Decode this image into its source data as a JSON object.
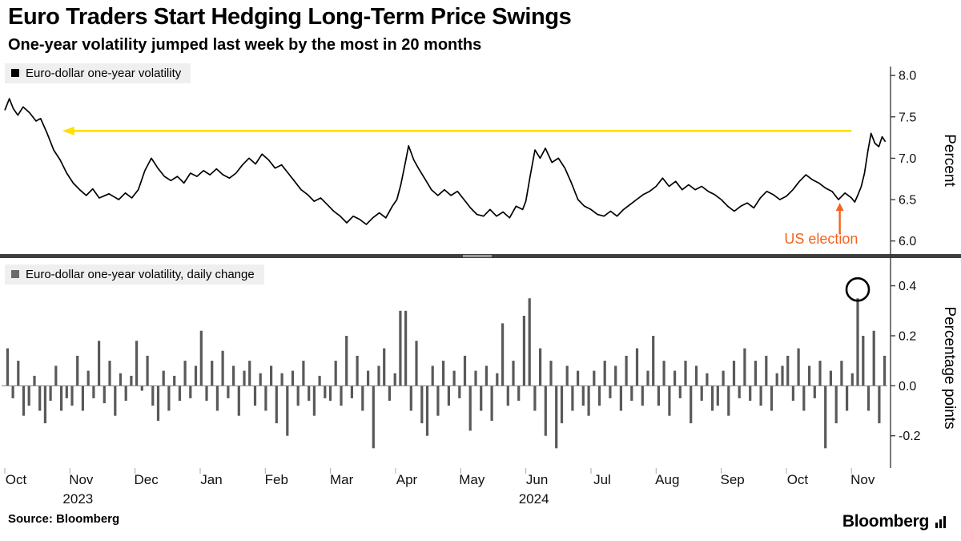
{
  "title": "Euro Traders Start Hedging Long-Term Price Swings",
  "subtitle": "One-year volatility jumped last week by the most in 20 months",
  "source": "Source: Bloomberg",
  "brand": "Bloomberg",
  "colors": {
    "line": "#000000",
    "bar": "#595959",
    "accent_yellow": "#ffe000",
    "accent_orange": "#f4631c",
    "legend_bg": "#efefef",
    "axis": "#333333",
    "divider": "#3f3f3f"
  },
  "x_axis": {
    "months": [
      "Oct",
      "Nov",
      "Dec",
      "Jan",
      "Feb",
      "Mar",
      "Apr",
      "May",
      "Jun",
      "Jul",
      "Aug",
      "Sep",
      "Oct",
      "Nov"
    ],
    "years": [
      {
        "label": "2023",
        "month_index": 1
      },
      {
        "label": "2024",
        "month_index": 8
      }
    ],
    "span_months": 13.55
  },
  "chart_data": [
    {
      "type": "line",
      "title": "Euro-dollar one-year volatility",
      "ylabel": "Percent",
      "ylim": [
        5.9,
        8.05
      ],
      "yticks": [
        8.0,
        7.5,
        7.0,
        6.5,
        6.0
      ],
      "x_unit": "months since 2023-10-01",
      "points": [
        [
          0.0,
          7.58
        ],
        [
          0.07,
          7.72
        ],
        [
          0.13,
          7.6
        ],
        [
          0.2,
          7.52
        ],
        [
          0.28,
          7.62
        ],
        [
          0.38,
          7.55
        ],
        [
          0.48,
          7.45
        ],
        [
          0.55,
          7.48
        ],
        [
          0.65,
          7.3
        ],
        [
          0.75,
          7.1
        ],
        [
          0.85,
          6.98
        ],
        [
          0.95,
          6.82
        ],
        [
          1.05,
          6.7
        ],
        [
          1.15,
          6.62
        ],
        [
          1.25,
          6.55
        ],
        [
          1.35,
          6.63
        ],
        [
          1.45,
          6.52
        ],
        [
          1.6,
          6.57
        ],
        [
          1.75,
          6.5
        ],
        [
          1.85,
          6.58
        ],
        [
          1.95,
          6.52
        ],
        [
          2.05,
          6.62
        ],
        [
          2.15,
          6.85
        ],
        [
          2.25,
          7.0
        ],
        [
          2.35,
          6.88
        ],
        [
          2.45,
          6.78
        ],
        [
          2.55,
          6.73
        ],
        [
          2.65,
          6.78
        ],
        [
          2.75,
          6.7
        ],
        [
          2.85,
          6.82
        ],
        [
          2.95,
          6.78
        ],
        [
          3.05,
          6.85
        ],
        [
          3.15,
          6.8
        ],
        [
          3.25,
          6.87
        ],
        [
          3.35,
          6.8
        ],
        [
          3.45,
          6.76
        ],
        [
          3.55,
          6.82
        ],
        [
          3.65,
          6.92
        ],
        [
          3.75,
          7.0
        ],
        [
          3.85,
          6.93
        ],
        [
          3.95,
          7.05
        ],
        [
          4.05,
          6.98
        ],
        [
          4.15,
          6.88
        ],
        [
          4.25,
          6.92
        ],
        [
          4.35,
          6.82
        ],
        [
          4.45,
          6.72
        ],
        [
          4.55,
          6.62
        ],
        [
          4.65,
          6.56
        ],
        [
          4.75,
          6.48
        ],
        [
          4.85,
          6.52
        ],
        [
          4.95,
          6.44
        ],
        [
          5.05,
          6.36
        ],
        [
          5.15,
          6.3
        ],
        [
          5.25,
          6.22
        ],
        [
          5.35,
          6.3
        ],
        [
          5.45,
          6.26
        ],
        [
          5.55,
          6.2
        ],
        [
          5.65,
          6.28
        ],
        [
          5.75,
          6.34
        ],
        [
          5.85,
          6.28
        ],
        [
          5.95,
          6.42
        ],
        [
          6.02,
          6.5
        ],
        [
          6.08,
          6.68
        ],
        [
          6.15,
          6.95
        ],
        [
          6.2,
          7.15
        ],
        [
          6.28,
          6.98
        ],
        [
          6.35,
          6.88
        ],
        [
          6.45,
          6.75
        ],
        [
          6.55,
          6.62
        ],
        [
          6.65,
          6.55
        ],
        [
          6.75,
          6.62
        ],
        [
          6.85,
          6.55
        ],
        [
          6.95,
          6.6
        ],
        [
          7.05,
          6.5
        ],
        [
          7.15,
          6.4
        ],
        [
          7.25,
          6.32
        ],
        [
          7.35,
          6.3
        ],
        [
          7.45,
          6.38
        ],
        [
          7.55,
          6.3
        ],
        [
          7.65,
          6.35
        ],
        [
          7.75,
          6.28
        ],
        [
          7.85,
          6.42
        ],
        [
          7.95,
          6.38
        ],
        [
          8.0,
          6.48
        ],
        [
          8.07,
          6.8
        ],
        [
          8.14,
          7.1
        ],
        [
          8.22,
          7.0
        ],
        [
          8.3,
          7.12
        ],
        [
          8.4,
          6.95
        ],
        [
          8.5,
          7.0
        ],
        [
          8.6,
          6.88
        ],
        [
          8.7,
          6.7
        ],
        [
          8.8,
          6.5
        ],
        [
          8.9,
          6.42
        ],
        [
          9.0,
          6.38
        ],
        [
          9.1,
          6.32
        ],
        [
          9.2,
          6.3
        ],
        [
          9.3,
          6.36
        ],
        [
          9.4,
          6.3
        ],
        [
          9.5,
          6.38
        ],
        [
          9.6,
          6.44
        ],
        [
          9.7,
          6.5
        ],
        [
          9.8,
          6.56
        ],
        [
          9.9,
          6.6
        ],
        [
          10.0,
          6.66
        ],
        [
          10.1,
          6.76
        ],
        [
          10.2,
          6.66
        ],
        [
          10.3,
          6.72
        ],
        [
          10.4,
          6.62
        ],
        [
          10.5,
          6.68
        ],
        [
          10.6,
          6.62
        ],
        [
          10.7,
          6.66
        ],
        [
          10.8,
          6.6
        ],
        [
          10.9,
          6.56
        ],
        [
          11.0,
          6.5
        ],
        [
          11.1,
          6.42
        ],
        [
          11.2,
          6.36
        ],
        [
          11.3,
          6.42
        ],
        [
          11.4,
          6.46
        ],
        [
          11.5,
          6.4
        ],
        [
          11.6,
          6.52
        ],
        [
          11.7,
          6.6
        ],
        [
          11.8,
          6.56
        ],
        [
          11.9,
          6.5
        ],
        [
          12.0,
          6.54
        ],
        [
          12.1,
          6.62
        ],
        [
          12.2,
          6.72
        ],
        [
          12.3,
          6.8
        ],
        [
          12.4,
          6.74
        ],
        [
          12.5,
          6.7
        ],
        [
          12.6,
          6.64
        ],
        [
          12.7,
          6.6
        ],
        [
          12.8,
          6.5
        ],
        [
          12.9,
          6.58
        ],
        [
          13.0,
          6.52
        ],
        [
          13.05,
          6.47
        ],
        [
          13.1,
          6.56
        ],
        [
          13.15,
          6.66
        ],
        [
          13.2,
          6.82
        ],
        [
          13.25,
          7.08
        ],
        [
          13.3,
          7.3
        ],
        [
          13.36,
          7.18
        ],
        [
          13.42,
          7.14
        ],
        [
          13.47,
          7.26
        ],
        [
          13.52,
          7.2
        ]
      ],
      "annotations": {
        "yellow_arrow": {
          "value": 7.33,
          "from_month": 13.0,
          "to_month": 0.92
        },
        "us_election": {
          "label": "US election",
          "arrow_month": 12.82,
          "arrow_from_value": 6.08,
          "arrow_to_value": 6.46,
          "label_month": 13.1,
          "label_value": 5.97
        }
      }
    },
    {
      "type": "bar",
      "title": "Euro-dollar one-year volatility, daily change",
      "ylabel": "Percentage points",
      "ylim": [
        -0.31,
        0.45
      ],
      "yticks": [
        0.4,
        0.2,
        0.0,
        -0.2
      ],
      "values": [
        0.15,
        -0.05,
        0.1,
        -0.12,
        -0.08,
        0.04,
        -0.1,
        -0.15,
        -0.06,
        0.08,
        -0.1,
        -0.05,
        -0.08,
        0.12,
        -0.1,
        0.06,
        -0.05,
        0.18,
        -0.07,
        0.1,
        -0.12,
        0.05,
        -0.06,
        0.04,
        0.18,
        -0.02,
        0.12,
        -0.08,
        -0.14,
        0.06,
        -0.1,
        0.04,
        -0.06,
        0.1,
        -0.05,
        0.08,
        0.22,
        -0.06,
        0.1,
        -0.1,
        0.14,
        -0.05,
        0.08,
        -0.12,
        0.06,
        0.1,
        -0.08,
        0.05,
        -0.1,
        0.08,
        -0.15,
        0.05,
        -0.2,
        0.06,
        -0.08,
        0.1,
        -0.06,
        -0.12,
        0.04,
        -0.05,
        -0.06,
        0.1,
        -0.08,
        0.2,
        -0.05,
        0.12,
        -0.1,
        0.06,
        -0.25,
        0.08,
        0.15,
        -0.06,
        0.05,
        0.3,
        0.3,
        -0.1,
        0.18,
        -0.15,
        -0.2,
        0.08,
        -0.12,
        0.1,
        -0.08,
        0.06,
        -0.05,
        0.12,
        -0.18,
        0.06,
        -0.1,
        0.08,
        -0.14,
        0.05,
        0.25,
        -0.08,
        0.1,
        -0.06,
        0.28,
        0.35,
        -0.1,
        0.15,
        -0.2,
        0.1,
        -0.25,
        -0.15,
        0.08,
        -0.1,
        0.06,
        -0.08,
        -0.12,
        0.06,
        -0.08,
        0.1,
        -0.05,
        0.08,
        -0.1,
        0.12,
        -0.06,
        0.15,
        -0.08,
        0.06,
        0.2,
        -0.08,
        0.1,
        -0.12,
        0.06,
        -0.05,
        0.1,
        -0.15,
        0.08,
        -0.06,
        0.05,
        -0.1,
        -0.08,
        0.06,
        -0.12,
        0.1,
        -0.05,
        0.15,
        -0.06,
        0.1,
        -0.08,
        0.12,
        -0.1,
        0.05,
        0.08,
        0.12,
        -0.06,
        0.15,
        -0.1,
        0.08,
        -0.05,
        0.1,
        -0.25,
        0.06,
        -0.15,
        0.1,
        -0.1,
        0.05,
        0.35,
        0.2,
        -0.1,
        0.22,
        -0.15,
        0.12
      ],
      "highlight_circle": {
        "bar_index": 158,
        "value": 0.35
      }
    }
  ]
}
